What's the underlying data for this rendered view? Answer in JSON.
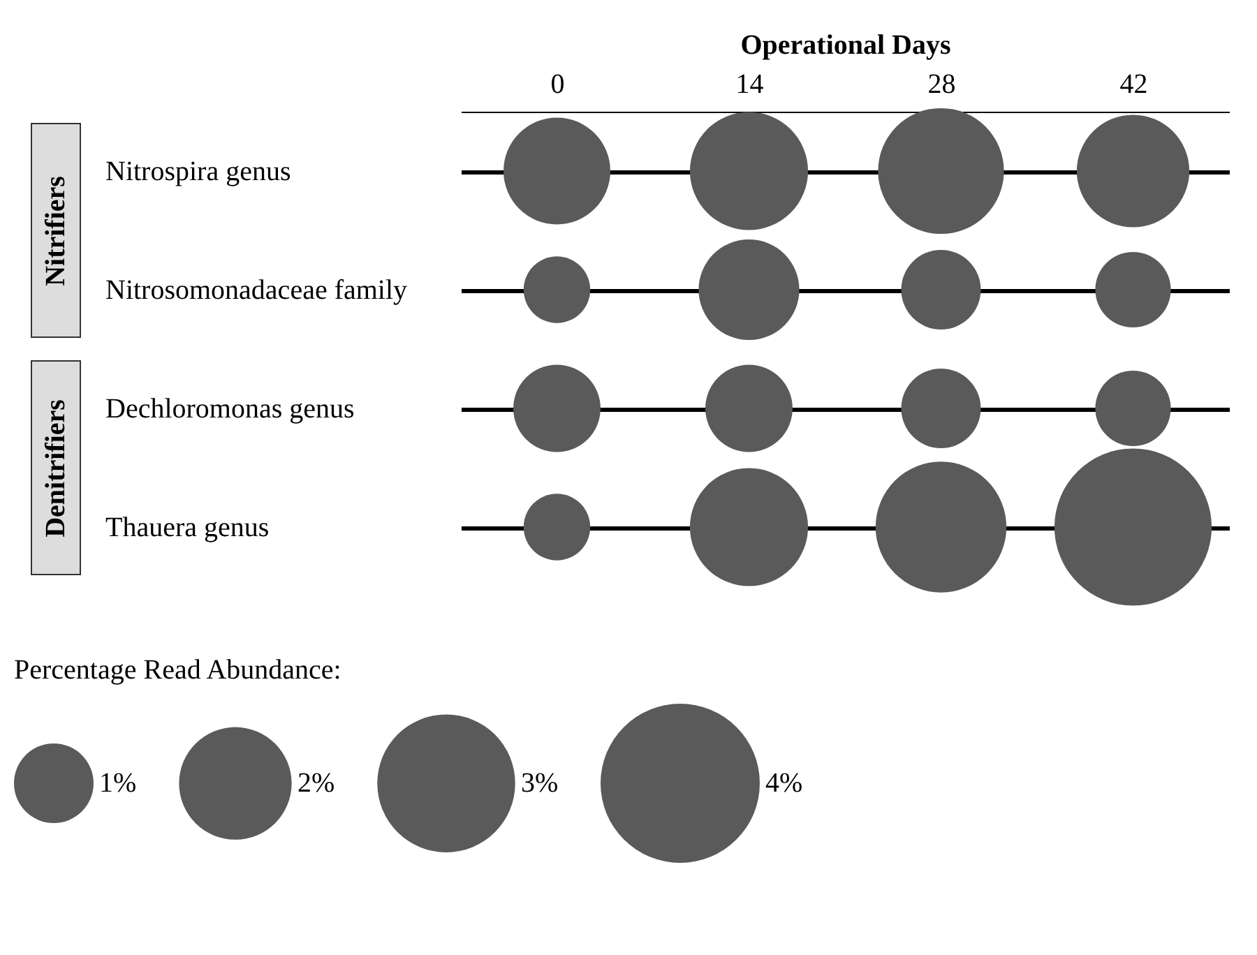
{
  "chart_data": {
    "type": "bubble",
    "orientation": "horizontal",
    "xlabel": "Operational Days",
    "legend_title": "Percentage Read Abundance:",
    "categories": [
      "Nitrospira genus",
      "Nitrosomonadaceae family",
      "Dechloromonas genus",
      "Thauera genus"
    ],
    "xlim": [
      -7,
      49
    ],
    "xticks": [
      0,
      14,
      28,
      42
    ],
    "grid": "y",
    "annotations": [
      "Nitrifiers",
      "Denitrifiers"
    ],
    "series": [
      {
        "color": "#5a5a5a",
        "values": [
          0,
          0,
          0,
          0
        ],
        "sizes": [
          1.8,
          0.7,
          1.2,
          0.7
        ]
      },
      {
        "color": "#5a5a5a",
        "values": [
          14,
          14,
          14,
          14
        ],
        "sizes": [
          2.2,
          1.6,
          1.2,
          2.2
        ]
      },
      {
        "color": "#5a5a5a",
        "values": [
          28,
          28,
          28,
          28
        ],
        "sizes": [
          2.5,
          1.0,
          1.0,
          2.7
        ]
      },
      {
        "color": "#5a5a5a",
        "values": [
          42,
          42,
          42,
          42
        ],
        "sizes": [
          2.0,
          0.9,
          0.9,
          3.9
        ]
      }
    ],
    "size_legend": [
      {
        "value": 1,
        "label": "1%"
      },
      {
        "value": 2,
        "label": "2%"
      },
      {
        "value": 3,
        "label": "3%"
      },
      {
        "value": 4,
        "label": "4%"
      }
    ]
  }
}
